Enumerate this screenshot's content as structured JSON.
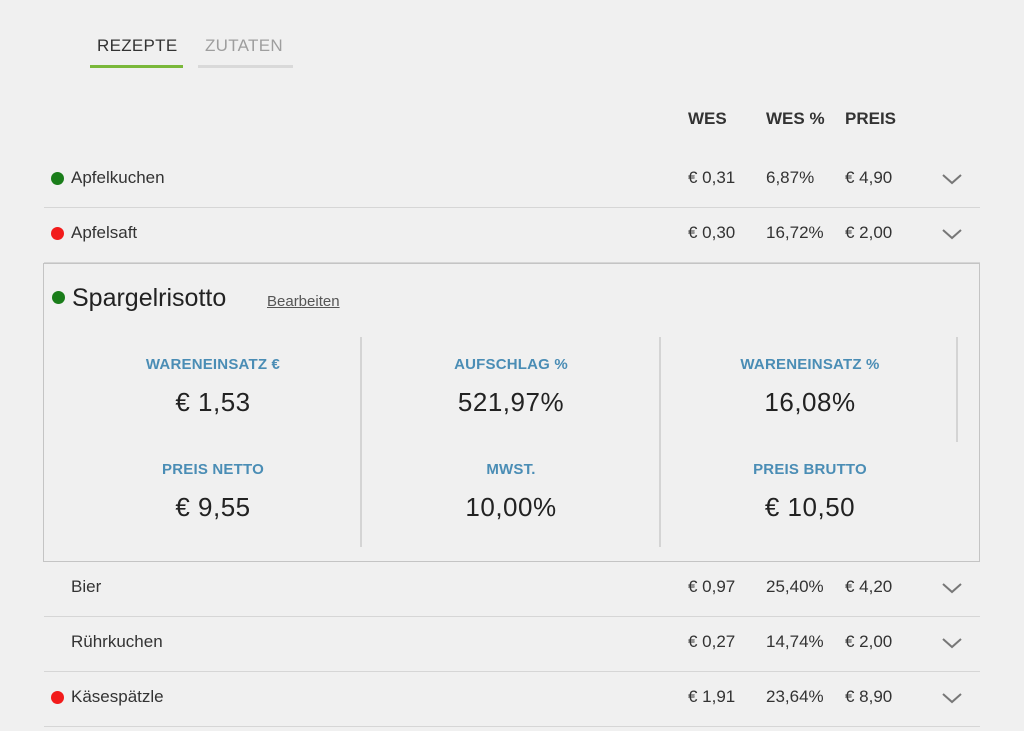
{
  "tabs": [
    {
      "label": "REZEPTE",
      "active": true
    },
    {
      "label": "ZUTATEN",
      "active": false
    }
  ],
  "columns": {
    "wes": "WES",
    "wes_pct": "WES %",
    "preis": "PREIS"
  },
  "colors": {
    "green": "#1a7d1a",
    "red": "#f21b1b",
    "accent": "#7ab83a",
    "label_blue": "#4a8db5"
  },
  "rows_top": [
    {
      "status": "green",
      "name": "Apfelkuchen",
      "wes": "€ 0,31",
      "wes_pct": "6,87%",
      "preis": "€ 4,90"
    },
    {
      "status": "red",
      "name": "Apfelsaft",
      "wes": "€ 0,30",
      "wes_pct": "16,72%",
      "preis": "€ 2,00"
    }
  ],
  "expanded": {
    "status": "green",
    "title": "Spargelrisotto",
    "edit_label": "Bearbeiten",
    "stats": [
      {
        "label": "WARENEINSATZ €",
        "value": "€ 1,53"
      },
      {
        "label": "AUFSCHLAG %",
        "value": "521,97%"
      },
      {
        "label": "WARENEINSATZ %",
        "value": "16,08%"
      },
      {
        "label": "PREIS NETTO",
        "value": "€ 9,55"
      },
      {
        "label": "MWST.",
        "value": "10,00%"
      },
      {
        "label": "PREIS BRUTTO",
        "value": "€ 10,50"
      }
    ]
  },
  "rows_bottom": [
    {
      "status": "none",
      "name": "Bier",
      "wes": "€ 0,97",
      "wes_pct": "25,40%",
      "preis": "€ 4,20"
    },
    {
      "status": "none",
      "name": "Rührkuchen",
      "wes": "€ 0,27",
      "wes_pct": "14,74%",
      "preis": "€ 2,00"
    },
    {
      "status": "red",
      "name": "Käsespätzle",
      "wes": "€ 1,91",
      "wes_pct": "23,64%",
      "preis": "€ 8,90"
    }
  ]
}
